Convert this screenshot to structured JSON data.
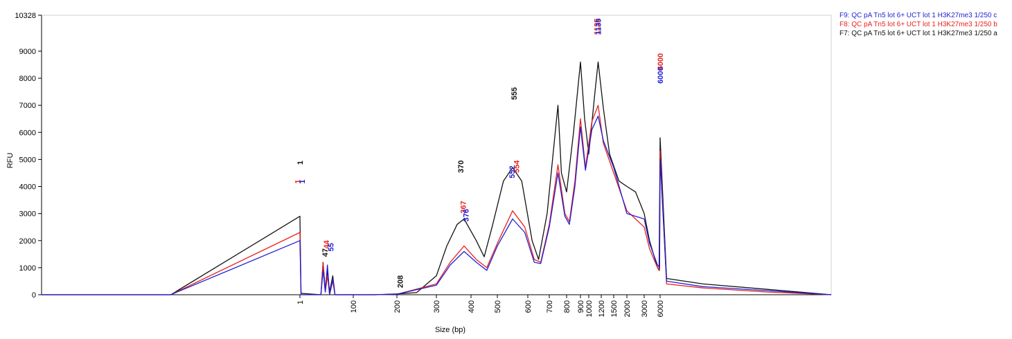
{
  "chart_data": {
    "type": "line",
    "x_scale": "piecewise",
    "x_label": "Size (bp)",
    "y_label": "RFU",
    "xlim": [
      0,
      10000
    ],
    "xticks": [
      1,
      100,
      200,
      300,
      400,
      500,
      600,
      700,
      800,
      900,
      1000,
      1200,
      1500,
      2000,
      3000,
      6000
    ],
    "ylim": [
      0,
      10328
    ],
    "yticks": [
      0,
      1000,
      2000,
      3000,
      4000,
      5000,
      6000,
      7000,
      8000,
      9000,
      10328
    ],
    "series": [
      {
        "name": "F9: QC pA Tn5 lot 6+ UCT lot 1 H3K27me3 1/250 c",
        "color": "#1f1fd6",
        "x": [
          0,
          0.5,
          1,
          3,
          40,
          44,
          48,
          52,
          56,
          62,
          66,
          150,
          200,
          300,
          340,
          380,
          420,
          460,
          500,
          550,
          590,
          630,
          660,
          700,
          750,
          790,
          820,
          860,
          900,
          960,
          1050,
          1150,
          1250,
          1500,
          2000,
          2500,
          3000,
          4000,
          5500,
          5900,
          6000,
          6150,
          7000,
          8500,
          10000
        ],
        "values": [
          0,
          0,
          2000,
          0,
          0,
          900,
          100,
          1100,
          0,
          600,
          0,
          0,
          20,
          350,
          1100,
          1600,
          1200,
          900,
          1800,
          2800,
          2300,
          1200,
          1150,
          2500,
          4500,
          2900,
          2600,
          4000,
          6200,
          4600,
          6100,
          6600,
          5700,
          4700,
          3000,
          2900,
          2800,
          1900,
          1100,
          1000,
          5000,
          500,
          300,
          150,
          0
        ]
      },
      {
        "name": "F8: QC pA Tn5 lot 6+ UCT lot 1 H3K27me3 1/250 b",
        "color": "#e8201e",
        "x": [
          0,
          0.5,
          1,
          3,
          40,
          44,
          48,
          52,
          56,
          62,
          66,
          150,
          200,
          300,
          340,
          380,
          420,
          460,
          500,
          550,
          590,
          630,
          660,
          700,
          750,
          790,
          820,
          860,
          900,
          960,
          1050,
          1150,
          1250,
          1500,
          2000,
          2500,
          3000,
          4000,
          5500,
          5900,
          6000,
          6150,
          7000,
          8500,
          10000
        ],
        "values": [
          0,
          0,
          2300,
          0,
          0,
          1200,
          100,
          700,
          0,
          500,
          0,
          0,
          20,
          400,
          1200,
          1800,
          1300,
          1000,
          1900,
          3100,
          2500,
          1300,
          1200,
          2600,
          4800,
          3000,
          2700,
          4200,
          6500,
          4700,
          6400,
          7000,
          5600,
          4500,
          3100,
          2800,
          2500,
          1700,
          1000,
          900,
          5300,
          400,
          250,
          100,
          0
        ]
      },
      {
        "name": "F7: QC pA Tn5 lot 6+ UCT lot 1 H3K27me3 1/250 a",
        "color": "#111111",
        "x": [
          0,
          0.5,
          1,
          3,
          40,
          44,
          48,
          52,
          56,
          62,
          66,
          150,
          200,
          250,
          300,
          330,
          360,
          380,
          420,
          450,
          480,
          520,
          550,
          580,
          620,
          650,
          690,
          750,
          770,
          800,
          850,
          900,
          950,
          1000,
          1100,
          1150,
          1250,
          1400,
          1700,
          2000,
          2500,
          3000,
          4000,
          5500,
          5800,
          6000,
          6150,
          7000,
          8500,
          10000
        ],
        "values": [
          0,
          0,
          2900,
          50,
          0,
          1200,
          200,
          900,
          100,
          700,
          0,
          0,
          30,
          80,
          700,
          1800,
          2600,
          2800,
          2000,
          1400,
          2500,
          4200,
          4700,
          4200,
          2000,
          1300,
          3000,
          7000,
          4500,
          3800,
          6000,
          8600,
          6500,
          5200,
          7500,
          8600,
          6900,
          5200,
          4200,
          4000,
          3800,
          3000,
          2000,
          1000,
          900,
          5800,
          600,
          400,
          200,
          0
        ]
      }
    ],
    "annotations": [
      {
        "text": "1",
        "x": 1,
        "y": 4800,
        "color": "#111111"
      },
      {
        "text": "1",
        "x": 0.99,
        "y": 4100,
        "color": "#e8201e"
      },
      {
        "text": "1",
        "x": 5,
        "y": 4100,
        "color": "#1f1fd6"
      },
      {
        "text": "47",
        "x": 47,
        "y": 1400,
        "color": "#111111"
      },
      {
        "text": "44",
        "x": 50,
        "y": 1700,
        "color": "#e8201e"
      },
      {
        "text": "55",
        "x": 58,
        "y": 1600,
        "color": "#1f1fd6"
      },
      {
        "text": "208",
        "x": 208,
        "y": 250,
        "color": "#111111"
      },
      {
        "text": "370",
        "x": 370,
        "y": 4500,
        "color": "#111111"
      },
      {
        "text": "367",
        "x": 377,
        "y": 3000,
        "color": "#e8201e"
      },
      {
        "text": "376",
        "x": 385,
        "y": 2700,
        "color": "#1f1fd6"
      },
      {
        "text": "555",
        "x": 555,
        "y": 7200,
        "color": "#111111"
      },
      {
        "text": "554",
        "x": 562,
        "y": 4500,
        "color": "#e8201e"
      },
      {
        "text": "552",
        "x": 548,
        "y": 4300,
        "color": "#1f1fd6"
      },
      {
        "text": "1135",
        "x": 1130,
        "y": 9600,
        "color": "#e8201e"
      },
      {
        "text": "1135",
        "x": 1150,
        "y": 9600,
        "color": "#1f1fd6"
      },
      {
        "text": "6000",
        "x": 6000,
        "y": 8300,
        "color": "#e8201e"
      },
      {
        "text": "6000",
        "x": 5980,
        "y": 7800,
        "color": "#1f1fd6"
      }
    ]
  }
}
